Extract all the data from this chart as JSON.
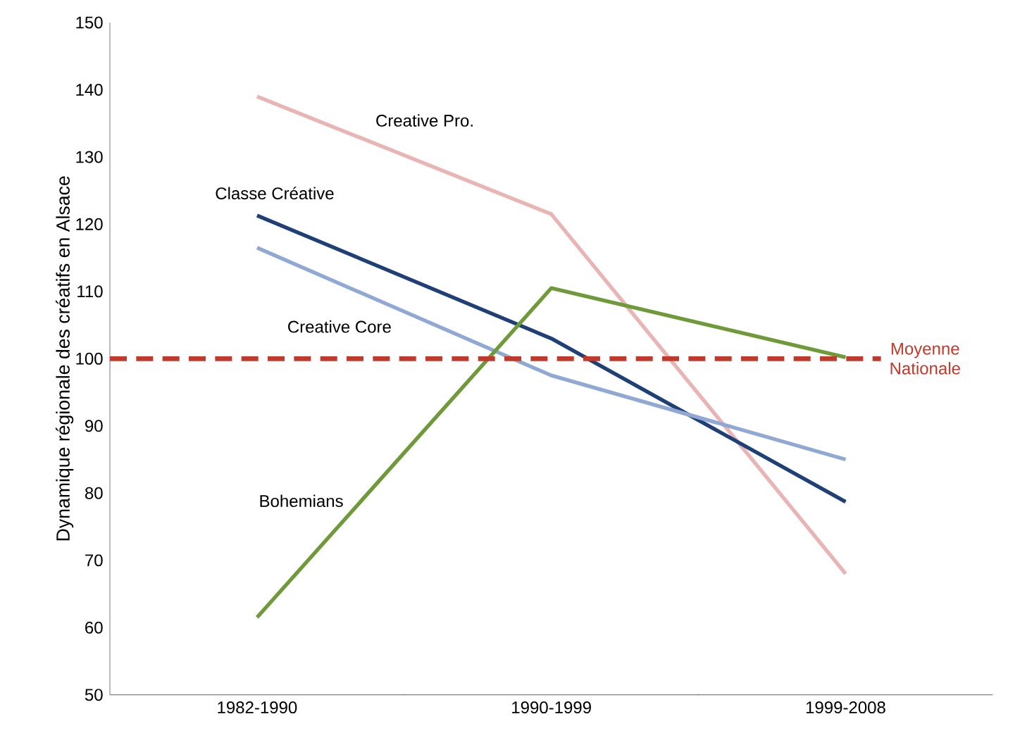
{
  "chart_data": {
    "type": "line",
    "ylabel": "Dynamique régionale des créatifs en Alsace",
    "categories": [
      "1982-1990",
      "1990-1999",
      "1999-2008"
    ],
    "series": [
      {
        "name": "Creative Pro.",
        "color": "#e8b4b4",
        "values": [
          139,
          121.5,
          68
        ]
      },
      {
        "name": "Classe Créative",
        "color": "#1f3f77",
        "values": [
          121.3,
          103,
          78.7
        ]
      },
      {
        "name": "Creative Core",
        "color": "#8fa8d4",
        "values": [
          116.5,
          97.5,
          85
        ]
      },
      {
        "name": "Bohemians",
        "color": "#6f9a3a",
        "values": [
          61.5,
          110.5,
          100.2
        ]
      }
    ],
    "ylim": [
      50,
      150
    ],
    "yticks": [
      50,
      60,
      70,
      80,
      90,
      100,
      110,
      120,
      130,
      140,
      150
    ],
    "ref_lines": [
      {
        "axis": "y",
        "value": 100,
        "label": "Moyenne Nationale",
        "color": "#c0392b",
        "line_style": "dashed"
      }
    ],
    "grid": false,
    "legend": false,
    "marker": "none",
    "line_style": "solid"
  }
}
